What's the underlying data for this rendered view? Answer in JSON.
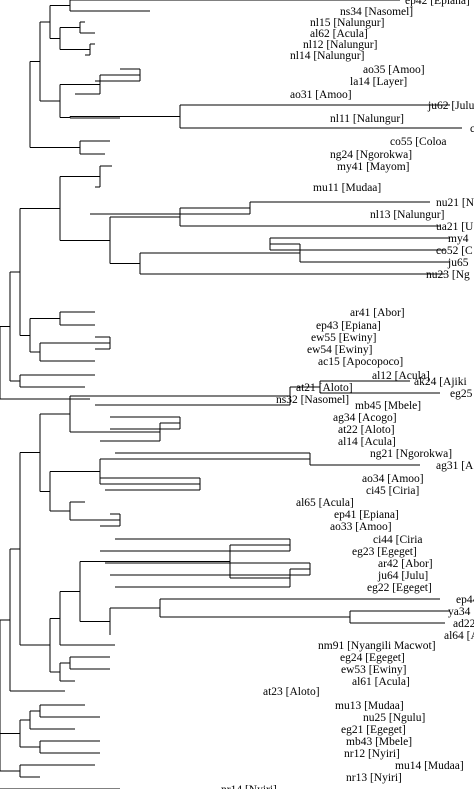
{
  "tree": {
    "leaves": [
      "ep42 [Epiana]",
      "ns34 [Nasomel]",
      "nl15 [Nalungur]",
      "al62 [Acula]",
      "nl12 [Nalungur]",
      "nl14 [Nalungur]",
      "ao35 [Amoo]",
      "la14 [Layer]",
      "ao31 [Amoo]",
      "ju62 [Julu",
      "c",
      "nl11 [Nalungur]",
      "co55 [Coloa",
      "ng24 [Ngorokwa]",
      "my41 [Mayom]",
      "mu11 [Mudaa]",
      "nu21 [N",
      "nl13 [Nalungur]",
      "ua21 [U",
      "my4",
      "co52 [C",
      "ju65",
      "nu23 [Ng",
      "ar41 [Abor]",
      "ep43 [Epiana]",
      "ew55 [Ewiny]",
      "ew54 [Ewiny]",
      "ac15 [Apocopoco]",
      "al12 [Acula]",
      "at21 [Aloto]",
      "ns32 [Nasomel]",
      "ak24 [Ajiki",
      "eg25 [E",
      "mb45 [Mbele]",
      "ag34 [Acogo]",
      "at22 [Aloto]",
      "al14 [Acula]",
      "ng21 [Ngorokwa]",
      "ag31 [A",
      "ao34 [Amoo]",
      "ci45 [Ciria]",
      "al65 [Acula]",
      "ep41 [Epiana]",
      "ao33 [Amoo]",
      "ci44 [Ciria",
      "eg23 [Egeget]",
      "ar42 [Abor]",
      "ju64 [Julu]",
      "eg22 [Egeget]",
      "ep44 [Ep",
      "ya34",
      "ad22 [Ali",
      "al64 [Acula",
      "nm91 [Nyangili Macwot]",
      "eg24 [Egeget]",
      "ew53 [Ewiny]",
      "al61 [Acula]",
      "at23 [Aloto]",
      "mu13 [Mudaa]",
      "nu25 [Ngulu]",
      "eg21 [Egeget]",
      "mb43 [Mbele]",
      "nr12 [Nyiri]",
      "mu14 [Mudaa]",
      "nr13 [Nyiri]",
      "nr14 [Nyiri]"
    ]
  }
}
